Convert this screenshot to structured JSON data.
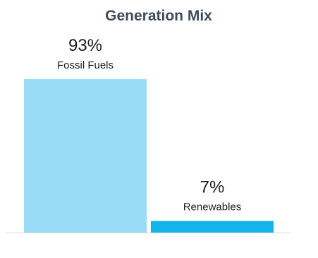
{
  "chart_data": {
    "type": "bar",
    "title": "Generation Mix",
    "categories": [
      "Fossil Fuels",
      "Renewables"
    ],
    "values": [
      93,
      7
    ],
    "value_labels": [
      "93%",
      "7%"
    ],
    "colors": [
      "#9adbf7",
      "#12b5ea"
    ],
    "ylim": [
      0,
      100
    ],
    "unit": "%",
    "grid": false,
    "legend": false
  },
  "colors": {
    "title": "#3f4a5a",
    "text": "#1e1e1e",
    "baseline": "#d9d9d9"
  }
}
